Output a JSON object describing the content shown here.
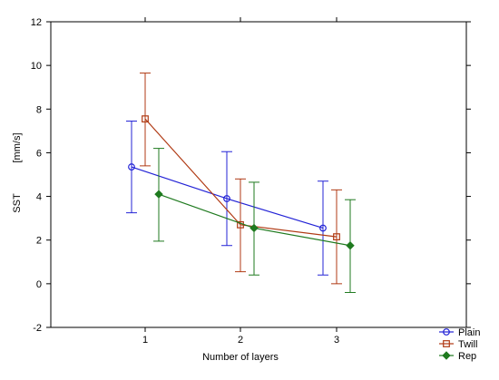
{
  "chart_data": {
    "type": "line",
    "xlabel": "Number of layers",
    "ylabel": "SST",
    "ylabel_unit": "[mm/s]",
    "x_categories": [
      "1",
      "2",
      "3"
    ],
    "ylim": [
      -2,
      12
    ],
    "y_ticks": [
      "-2",
      "0",
      "2",
      "4",
      "6",
      "8",
      "10",
      "12"
    ],
    "grid": false,
    "legend_position": "bottom-right",
    "series": [
      {
        "name": "Plain",
        "color": "#2323d6",
        "marker": "circle",
        "offset": -1,
        "values": [
          5.35,
          3.9,
          2.55
        ],
        "err_low": [
          3.25,
          1.75,
          0.4
        ],
        "err_high": [
          7.45,
          6.05,
          4.7
        ]
      },
      {
        "name": "Twill",
        "color": "#b03a14",
        "marker": "square",
        "offset": 0,
        "values": [
          7.55,
          2.7,
          2.15
        ],
        "err_low": [
          5.4,
          0.55,
          0.0
        ],
        "err_high": [
          9.65,
          4.8,
          4.3
        ]
      },
      {
        "name": "Rep",
        "color": "#1f7a1f",
        "marker": "diamond",
        "offset": 1,
        "values": [
          4.1,
          2.55,
          1.75
        ],
        "err_low": [
          1.95,
          0.4,
          -0.4
        ],
        "err_high": [
          6.2,
          4.65,
          3.85
        ]
      }
    ]
  }
}
